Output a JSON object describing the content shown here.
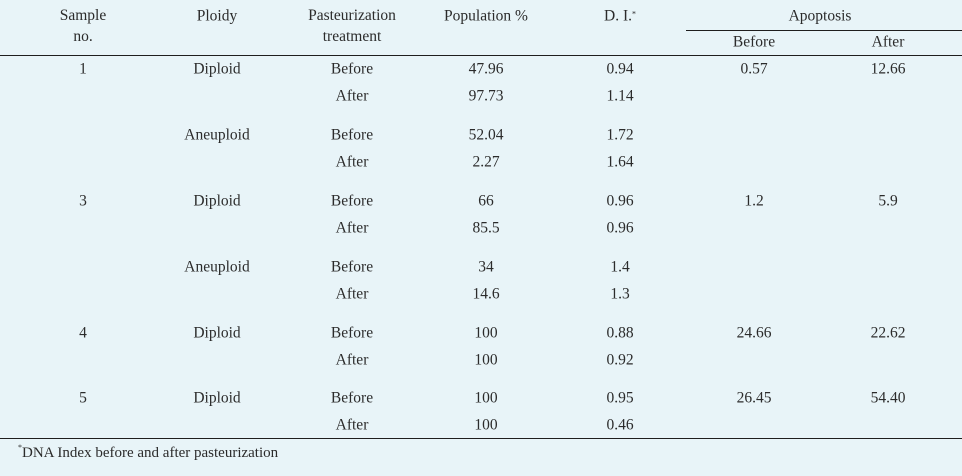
{
  "headers": {
    "sample": "Sample\nno.",
    "ploidy": "Ploidy",
    "treatment": "Pasteurization\ntreatment",
    "population": "Population %",
    "di": "D. I.",
    "di_mark": "*",
    "apoptosis": "Apoptosis",
    "apoptosis_before": "Before",
    "apoptosis_after": "After"
  },
  "rows": [
    {
      "sample": "1",
      "ploidy": "Diploid",
      "treatment": "Before",
      "population": "47.96",
      "di": "0.94",
      "apo_before": "0.57",
      "apo_after": "12.66"
    },
    {
      "sample": "",
      "ploidy": "",
      "treatment": "After",
      "population": "97.73",
      "di": "1.14",
      "apo_before": "",
      "apo_after": ""
    },
    {
      "sample": "",
      "ploidy": "Aneuploid",
      "treatment": "Before",
      "population": "52.04",
      "di": "1.72",
      "apo_before": "",
      "apo_after": ""
    },
    {
      "sample": "",
      "ploidy": "",
      "treatment": "After",
      "population": "2.27",
      "di": "1.64",
      "apo_before": "",
      "apo_after": ""
    },
    {
      "sample": "3",
      "ploidy": "Diploid",
      "treatment": "Before",
      "population": "66",
      "di": "0.96",
      "apo_before": "1.2",
      "apo_after": "5.9"
    },
    {
      "sample": "",
      "ploidy": "",
      "treatment": "After",
      "population": "85.5",
      "di": "0.96",
      "apo_before": "",
      "apo_after": ""
    },
    {
      "sample": "",
      "ploidy": "Aneuploid",
      "treatment": "Before",
      "population": "34",
      "di": "1.4",
      "apo_before": "",
      "apo_after": ""
    },
    {
      "sample": "",
      "ploidy": "",
      "treatment": "After",
      "population": "14.6",
      "di": "1.3",
      "apo_before": "",
      "apo_after": ""
    },
    {
      "sample": "4",
      "ploidy": "Diploid",
      "treatment": "Before",
      "population": "100",
      "di": "0.88",
      "apo_before": "24.66",
      "apo_after": "22.62"
    },
    {
      "sample": "",
      "ploidy": "",
      "treatment": "After",
      "population": "100",
      "di": "0.92",
      "apo_before": "",
      "apo_after": ""
    },
    {
      "sample": "5",
      "ploidy": "Diploid",
      "treatment": "Before",
      "population": "100",
      "di": "0.95",
      "apo_before": "26.45",
      "apo_after": "54.40"
    },
    {
      "sample": "",
      "ploidy": "",
      "treatment": "After",
      "population": "100",
      "di": "0.46",
      "apo_before": "",
      "apo_after": ""
    }
  ],
  "footnote": {
    "mark": "*",
    "text": "DNA Index before and after pasteurization"
  }
}
